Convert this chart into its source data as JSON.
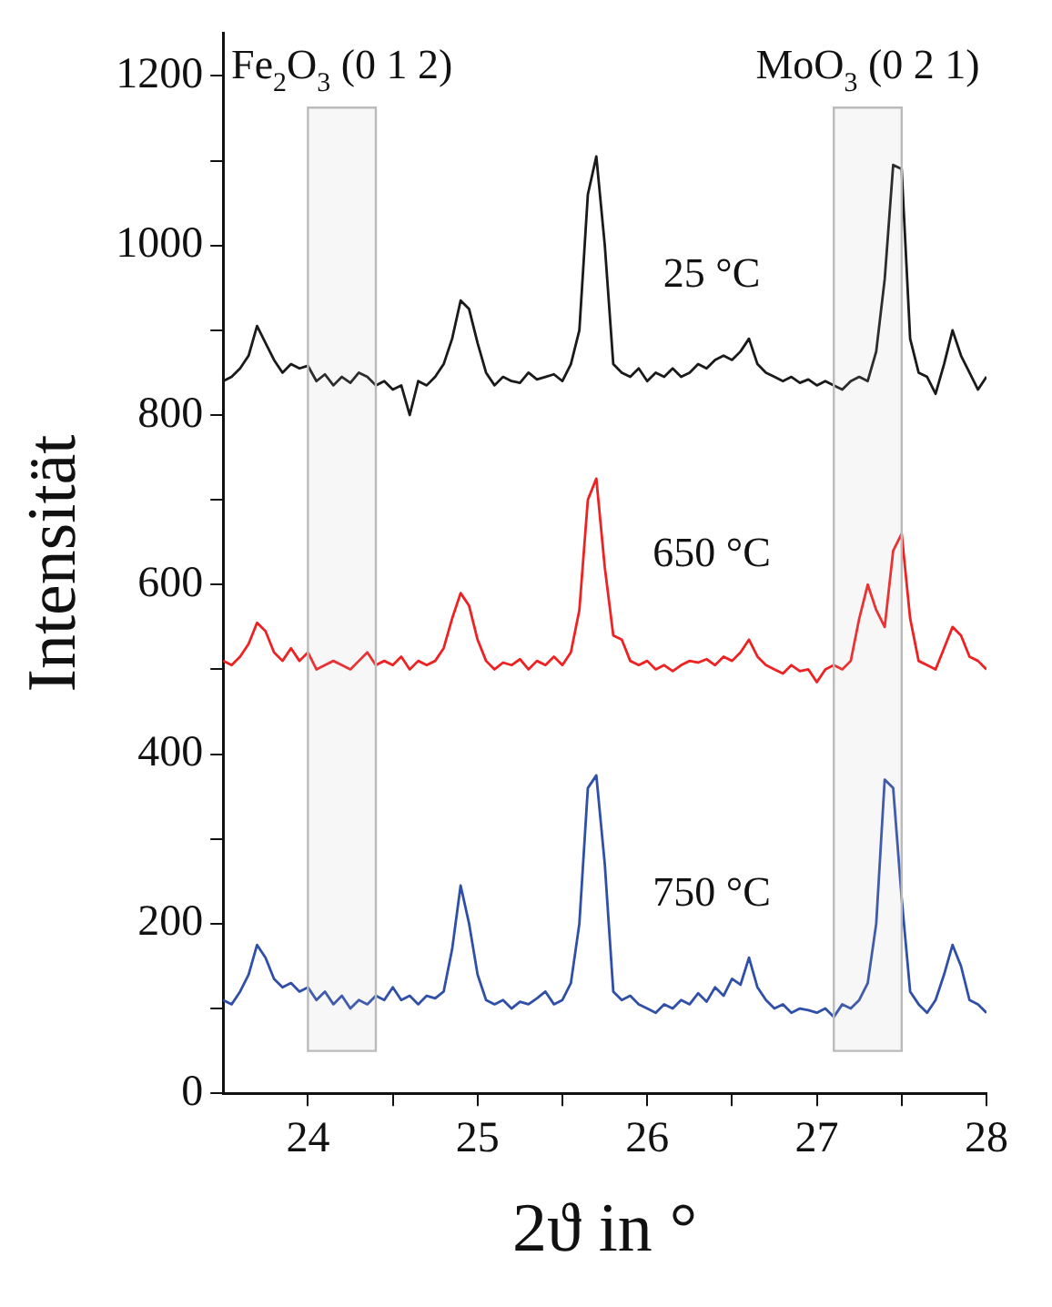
{
  "chart_data": {
    "type": "line",
    "xlabel": "2ϑ in °",
    "ylabel": "Intensität",
    "x": [
      23.5,
      23.55,
      23.6,
      23.65,
      23.7,
      23.75,
      23.8,
      23.85,
      23.9,
      23.95,
      24,
      24.05,
      24.1,
      24.15,
      24.2,
      24.25,
      24.3,
      24.35,
      24.4,
      24.45,
      24.5,
      24.55,
      24.6,
      24.65,
      24.7,
      24.75,
      24.8,
      24.85,
      24.9,
      24.95,
      25,
      25.05,
      25.1,
      25.15,
      25.2,
      25.25,
      25.3,
      25.35,
      25.4,
      25.45,
      25.5,
      25.55,
      25.6,
      25.65,
      25.7,
      25.75,
      25.8,
      25.85,
      25.9,
      25.95,
      26,
      26.05,
      26.1,
      26.15,
      26.2,
      26.25,
      26.3,
      26.35,
      26.4,
      26.45,
      26.5,
      26.55,
      26.6,
      26.65,
      26.7,
      26.75,
      26.8,
      26.85,
      26.9,
      26.95,
      27,
      27.05,
      27.1,
      27.15,
      27.2,
      27.25,
      27.3,
      27.35,
      27.4,
      27.45,
      27.5,
      27.55,
      27.6,
      27.65,
      27.7,
      27.75,
      27.8,
      27.85,
      27.9,
      27.95,
      28
    ],
    "series": [
      {
        "name": "25 °C",
        "color": "#1a1a1a",
        "values": [
          840,
          845,
          855,
          870,
          905,
          885,
          865,
          850,
          860,
          855,
          858,
          840,
          848,
          835,
          845,
          838,
          850,
          845,
          835,
          840,
          830,
          835,
          800,
          840,
          835,
          845,
          860,
          890,
          935,
          925,
          885,
          850,
          835,
          845,
          840,
          838,
          850,
          842,
          845,
          848,
          840,
          860,
          900,
          1060,
          1105,
          1000,
          860,
          850,
          845,
          855,
          840,
          850,
          845,
          855,
          845,
          850,
          860,
          855,
          865,
          870,
          865,
          875,
          890,
          860,
          850,
          845,
          840,
          845,
          838,
          842,
          835,
          840,
          835,
          830,
          840,
          845,
          840,
          875,
          960,
          1095,
          1090,
          890,
          850,
          845,
          825,
          860,
          900,
          870,
          850,
          830,
          845
        ]
      },
      {
        "name": "650 °C",
        "color": "#ee2222",
        "values": [
          510,
          505,
          515,
          530,
          555,
          545,
          520,
          510,
          525,
          510,
          520,
          500,
          505,
          510,
          505,
          500,
          510,
          520,
          505,
          510,
          505,
          515,
          500,
          510,
          505,
          510,
          525,
          560,
          590,
          575,
          535,
          510,
          500,
          508,
          505,
          512,
          500,
          510,
          505,
          515,
          505,
          520,
          570,
          700,
          725,
          620,
          540,
          535,
          510,
          505,
          510,
          500,
          505,
          498,
          505,
          510,
          508,
          512,
          505,
          515,
          510,
          520,
          535,
          515,
          505,
          500,
          495,
          505,
          498,
          500,
          485,
          500,
          505,
          500,
          510,
          560,
          600,
          570,
          550,
          640,
          660,
          560,
          510,
          505,
          500,
          525,
          550,
          540,
          515,
          510,
          500
        ]
      },
      {
        "name": "750 °C",
        "color": "#2f4fa8",
        "values": [
          110,
          105,
          120,
          140,
          175,
          160,
          135,
          125,
          130,
          120,
          125,
          110,
          120,
          105,
          115,
          100,
          110,
          105,
          115,
          110,
          125,
          110,
          115,
          105,
          115,
          112,
          120,
          170,
          245,
          200,
          140,
          110,
          105,
          110,
          100,
          108,
          105,
          112,
          120,
          105,
          110,
          130,
          200,
          360,
          375,
          270,
          120,
          110,
          115,
          105,
          100,
          95,
          105,
          100,
          110,
          105,
          118,
          108,
          125,
          115,
          135,
          128,
          160,
          125,
          110,
          100,
          105,
          95,
          100,
          98,
          95,
          100,
          90,
          105,
          100,
          110,
          130,
          200,
          370,
          360,
          230,
          120,
          105,
          95,
          110,
          140,
          175,
          150,
          110,
          105,
          95
        ]
      }
    ],
    "xlim": [
      23.5,
      28
    ],
    "xticks": [
      24,
      {
        "value": 24.5,
        "label": null
      },
      25,
      {
        "value": 25.5,
        "label": null
      },
      26,
      {
        "value": 26.5,
        "label": null
      },
      27,
      {
        "value": 27.5,
        "label": null
      },
      28
    ],
    "ylim": [
      0,
      1250
    ],
    "yticks": [
      0,
      {
        "value": 100,
        "label": null
      },
      200,
      {
        "value": 300,
        "label": null
      },
      400,
      {
        "value": 500,
        "label": null
      },
      600,
      {
        "value": 700,
        "label": null
      },
      800,
      {
        "value": 900,
        "label": null
      },
      1000,
      {
        "value": 1100,
        "label": null
      },
      1200
    ],
    "bands": [
      {
        "axis": "x",
        "from": 24,
        "to": 24.4,
        "label": "Fe$_{2}$O$_{3}$ (0 1 2)",
        "color": "#bbbbbb"
      },
      {
        "axis": "x",
        "from": 27.1,
        "to": 27.5,
        "label": "MoO$_{3}$ (0 2 1)",
        "color": "#bbbbbb"
      }
    ],
    "grid": false,
    "legend": false,
    "marker": "none",
    "line_style": "solid"
  }
}
